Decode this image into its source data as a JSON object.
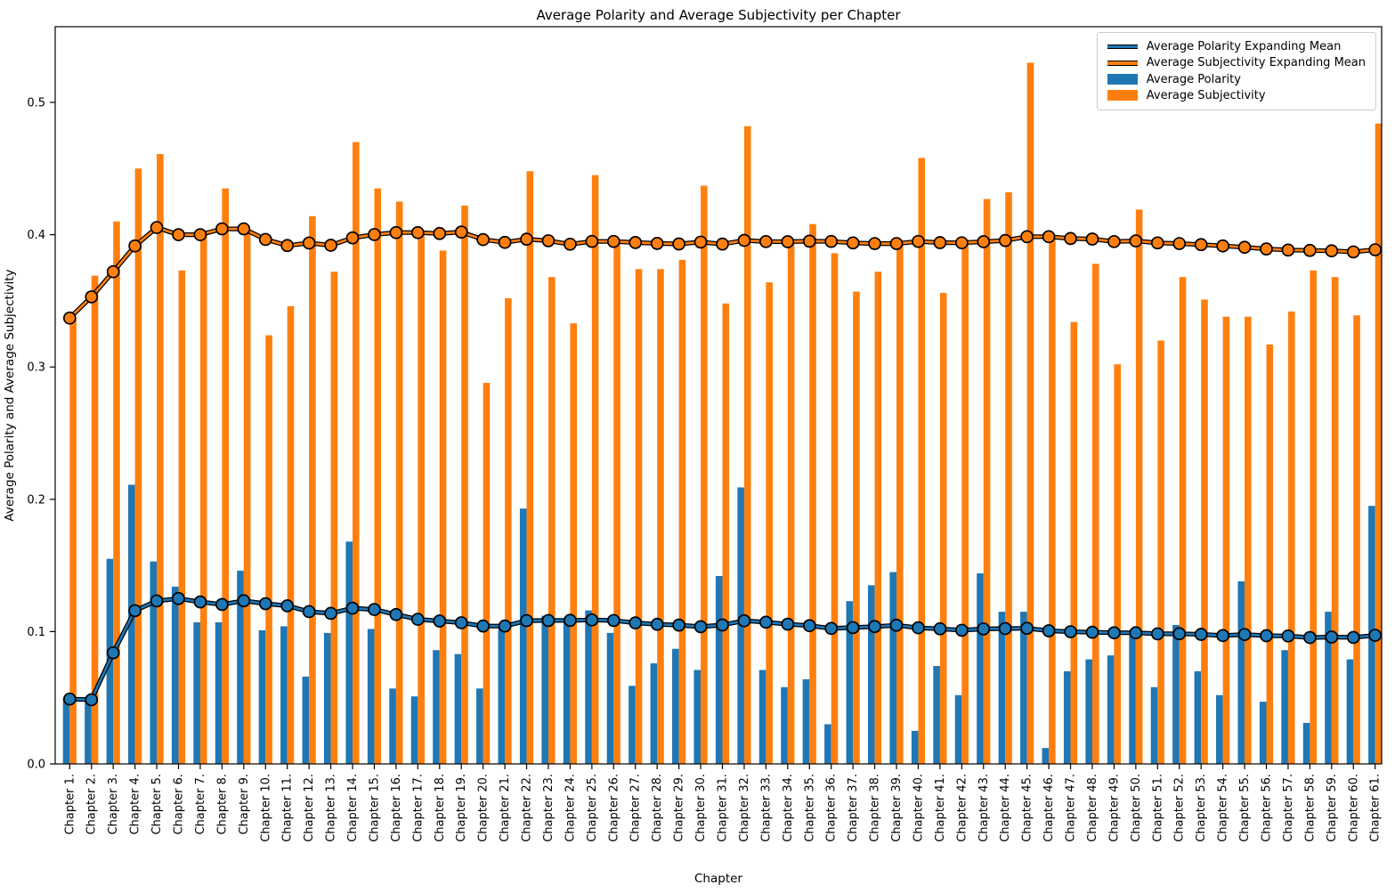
{
  "figure": {
    "title": "Average Polarity and Average Subjectivity per Chapter"
  },
  "axes": {
    "y_tick_labels": [
      "0.0",
      "0.1",
      "0.2",
      "0.3",
      "0.4",
      "0.5"
    ],
    "grid": false
  },
  "colors": {
    "polarity": "#1f77b4",
    "subjectivity": "#ff7f0e",
    "marker_edge": "#000000",
    "axis": "#000000",
    "legend_border": "#cccccc"
  },
  "chart_data": {
    "type": "bar+line",
    "title": "Average Polarity and Average Subjectivity per Chapter",
    "xlabel": "Chapter",
    "ylabel": "Average Polarity and Average Subjectivity",
    "ylim": [
      0,
      0.557
    ],
    "grid": false,
    "legend_position": "upper right",
    "categories": [
      "Chapter 1.",
      "Chapter 2.",
      "Chapter 3.",
      "Chapter 4.",
      "Chapter 5.",
      "Chapter 6.",
      "Chapter 7.",
      "Chapter 8.",
      "Chapter 9.",
      "Chapter 10.",
      "Chapter 11.",
      "Chapter 12.",
      "Chapter 13.",
      "Chapter 14.",
      "Chapter 15.",
      "Chapter 16.",
      "Chapter 17.",
      "Chapter 18.",
      "Chapter 19.",
      "Chapter 20.",
      "Chapter 21.",
      "Chapter 22.",
      "Chapter 23.",
      "Chapter 24.",
      "Chapter 25.",
      "Chapter 26.",
      "Chapter 27.",
      "Chapter 28.",
      "Chapter 29.",
      "Chapter 30.",
      "Chapter 31.",
      "Chapter 32.",
      "Chapter 33.",
      "Chapter 34.",
      "Chapter 35.",
      "Chapter 36.",
      "Chapter 37.",
      "Chapter 38.",
      "Chapter 39.",
      "Chapter 40.",
      "Chapter 41.",
      "Chapter 42.",
      "Chapter 43.",
      "Chapter 44.",
      "Chapter 45.",
      "Chapter 46.",
      "Chapter 47.",
      "Chapter 48.",
      "Chapter 49.",
      "Chapter 50.",
      "Chapter 51.",
      "Chapter 52.",
      "Chapter 53.",
      "Chapter 54.",
      "Chapter 55.",
      "Chapter 56.",
      "Chapter 57.",
      "Chapter 58.",
      "Chapter 59.",
      "Chapter 60.",
      "Chapter 61."
    ],
    "series": [
      {
        "name": "Average Polarity",
        "kind": "bar",
        "color": "#1f77b4",
        "values": [
          0.049,
          0.048,
          0.155,
          0.211,
          0.153,
          0.134,
          0.107,
          0.107,
          0.146,
          0.101,
          0.104,
          0.066,
          0.099,
          0.168,
          0.102,
          0.057,
          0.051,
          0.086,
          0.083,
          0.057,
          0.105,
          0.193,
          0.112,
          0.11,
          0.116,
          0.099,
          0.059,
          0.076,
          0.087,
          0.071,
          0.142,
          0.209,
          0.071,
          0.058,
          0.064,
          0.03,
          0.123,
          0.135,
          0.145,
          0.025,
          0.074,
          0.052,
          0.144,
          0.115,
          0.115,
          0.012,
          0.07,
          0.079,
          0.082,
          0.097,
          0.058,
          0.105,
          0.07,
          0.052,
          0.138,
          0.047,
          0.086,
          0.031,
          0.115,
          0.079,
          0.195
        ]
      },
      {
        "name": "Average Subjectivity",
        "kind": "bar",
        "color": "#ff7f0e",
        "values": [
          0.337,
          0.369,
          0.41,
          0.45,
          0.461,
          0.373,
          0.4,
          0.435,
          0.405,
          0.324,
          0.346,
          0.414,
          0.372,
          0.47,
          0.435,
          0.425,
          0.402,
          0.388,
          0.422,
          0.288,
          0.352,
          0.448,
          0.368,
          0.333,
          0.445,
          0.395,
          0.374,
          0.374,
          0.381,
          0.437,
          0.348,
          0.482,
          0.364,
          0.394,
          0.408,
          0.386,
          0.357,
          0.372,
          0.394,
          0.458,
          0.356,
          0.393,
          0.427,
          0.432,
          0.53,
          0.397,
          0.334,
          0.378,
          0.302,
          0.419,
          0.32,
          0.368,
          0.351,
          0.338,
          0.338,
          0.317,
          0.342,
          0.373,
          0.368,
          0.339,
          0.484
        ]
      },
      {
        "name": "Average Polarity Expanding Mean",
        "kind": "line",
        "color": "#1f77b4",
        "marker": "circle",
        "values": [
          0.049,
          0.0485,
          0.084,
          0.1158,
          0.1232,
          0.125,
          0.1224,
          0.1205,
          0.1233,
          0.1211,
          0.1195,
          0.1151,
          0.1138,
          0.1177,
          0.1167,
          0.1129,
          0.1093,
          0.108,
          0.1067,
          0.1042,
          0.1042,
          0.1083,
          0.1084,
          0.1085,
          0.1088,
          0.1084,
          0.1066,
          0.1055,
          0.1049,
          0.1037,
          0.105,
          0.1082,
          0.1071,
          0.1056,
          0.1045,
          0.1024,
          0.103,
          0.1038,
          0.1048,
          0.1029,
          0.1021,
          0.101,
          0.102,
          0.1023,
          0.1025,
          0.1006,
          0.0999,
          0.0995,
          0.0991,
          0.0991,
          0.0983,
          0.0984,
          0.0979,
          0.097,
          0.0978,
          0.0969,
          0.0967,
          0.0955,
          0.0959,
          0.0956,
          0.0972
        ]
      },
      {
        "name": "Average Subjectivity Expanding Mean",
        "kind": "line",
        "color": "#ff7f0e",
        "marker": "circle",
        "values": [
          0.337,
          0.353,
          0.372,
          0.3915,
          0.4054,
          0.4,
          0.4,
          0.4044,
          0.4044,
          0.3964,
          0.3918,
          0.3937,
          0.392,
          0.3976,
          0.4001,
          0.4016,
          0.4016,
          0.4009,
          0.402,
          0.3963,
          0.3942,
          0.3966,
          0.3954,
          0.3928,
          0.3949,
          0.3949,
          0.3941,
          0.3934,
          0.393,
          0.3944,
          0.3929,
          0.3957,
          0.3948,
          0.3947,
          0.3951,
          0.3949,
          0.3938,
          0.3933,
          0.3933,
          0.3949,
          0.394,
          0.3939,
          0.3947,
          0.3956,
          0.3985,
          0.3985,
          0.3971,
          0.3967,
          0.3948,
          0.3953,
          0.3938,
          0.3933,
          0.3925,
          0.3915,
          0.3905,
          0.3892,
          0.3884,
          0.3881,
          0.3878,
          0.387,
          0.3886
        ]
      }
    ]
  },
  "legend": {
    "items": [
      {
        "label": "Average Polarity Expanding Mean",
        "sample": "line",
        "color": "#1f77b4"
      },
      {
        "label": "Average Subjectivity Expanding Mean",
        "sample": "line",
        "color": "#ff7f0e"
      },
      {
        "label": "Average Polarity",
        "sample": "patch",
        "color": "#1f77b4"
      },
      {
        "label": "Average Subjectivity",
        "sample": "patch",
        "color": "#ff7f0e"
      }
    ]
  }
}
